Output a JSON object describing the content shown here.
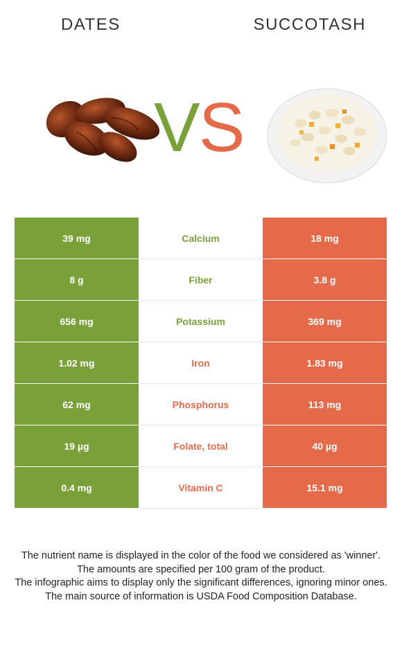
{
  "header": {
    "left_food": "DATES",
    "right_food": "SUCCOTASH",
    "vs_v": "V",
    "vs_s": "S"
  },
  "colors": {
    "winner_left": "#7aa03a",
    "winner_right": "#e56a4a"
  },
  "rows": [
    {
      "left": "39 mg",
      "nutrient": "Calcium",
      "right": "18 mg",
      "winner": "left"
    },
    {
      "left": "8 g",
      "nutrient": "Fiber",
      "right": "3.8 g",
      "winner": "left"
    },
    {
      "left": "656 mg",
      "nutrient": "Potassium",
      "right": "369 mg",
      "winner": "left"
    },
    {
      "left": "1.02 mg",
      "nutrient": "Iron",
      "right": "1.83 mg",
      "winner": "right"
    },
    {
      "left": "62 mg",
      "nutrient": "Phosphorus",
      "right": "113 mg",
      "winner": "right"
    },
    {
      "left": "19 µg",
      "nutrient": "Folate, total",
      "right": "40 µg",
      "winner": "right"
    },
    {
      "left": "0.4 mg",
      "nutrient": "Vitamin C",
      "right": "15.1 mg",
      "winner": "right"
    }
  ],
  "notes": [
    "The nutrient name is displayed in the color of the food we considered as 'winner'.",
    "The amounts are specified per 100 gram of the product.",
    "The infographic aims to display only the significant differences, ignoring minor ones.",
    "The main source of information is USDA Food Composition Database."
  ]
}
